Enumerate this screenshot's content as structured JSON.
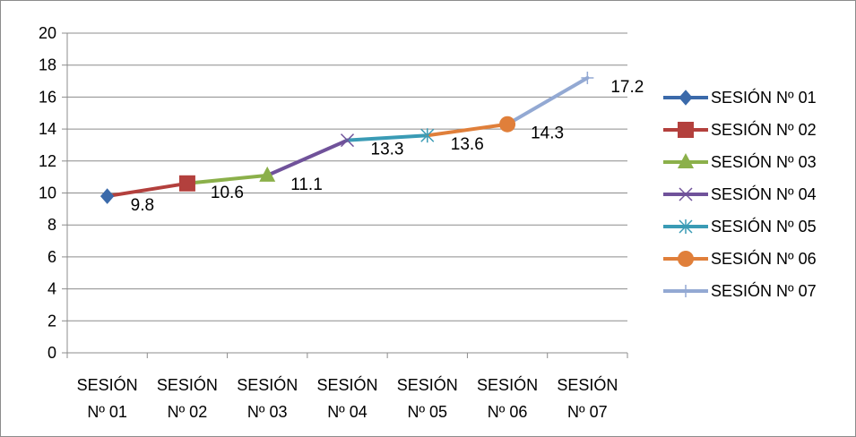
{
  "chart_data": {
    "type": "line",
    "title": "",
    "xlabel": "",
    "ylabel": "",
    "ylim": [
      0,
      20
    ],
    "yticks": [
      0,
      2,
      4,
      6,
      8,
      10,
      12,
      14,
      16,
      18,
      20
    ],
    "grid": "horizontal",
    "legend_position": "right",
    "categories": [
      [
        "SESIÓN",
        "Nº 01"
      ],
      [
        "SESIÓN",
        "Nº 02"
      ],
      [
        "SESIÓN",
        "Nº 03"
      ],
      [
        "SESIÓN",
        "Nº 04"
      ],
      [
        "SESIÓN",
        "Nº 05"
      ],
      [
        "SESIÓN",
        "Nº 06"
      ],
      [
        "SESIÓN",
        "Nº 07"
      ]
    ],
    "series": [
      {
        "name": "SESIÓN Nº 01",
        "values": [
          9.8,
          null,
          null,
          null,
          null,
          null,
          null
        ],
        "label": "9.8",
        "color": "#3b6aaa",
        "marker": "diamond-icon"
      },
      {
        "name": "SESIÓN Nº 02",
        "values": [
          9.8,
          10.6,
          null,
          null,
          null,
          null,
          null
        ],
        "label": "10.6",
        "color": "#b3403d",
        "marker": "square-icon"
      },
      {
        "name": "SESIÓN Nº 03",
        "values": [
          null,
          10.6,
          11.1,
          null,
          null,
          null,
          null
        ],
        "label": "11.1",
        "color": "#8bb04a",
        "marker": "triangle-icon"
      },
      {
        "name": "SESIÓN Nº 04",
        "values": [
          null,
          null,
          11.1,
          13.3,
          null,
          null,
          null
        ],
        "label": "13.3",
        "color": "#70529a",
        "marker": "x-icon"
      },
      {
        "name": "SESIÓN Nº 05",
        "values": [
          null,
          null,
          null,
          13.3,
          13.6,
          null,
          null
        ],
        "label": "13.6",
        "color": "#3a9bb5",
        "marker": "asterisk-icon"
      },
      {
        "name": "SESIÓN Nº 06",
        "values": [
          null,
          null,
          null,
          null,
          13.6,
          14.3,
          null
        ],
        "label": "14.3",
        "color": "#e07f3a",
        "marker": "circle-icon"
      },
      {
        "name": "SESIÓN Nº 07",
        "values": [
          null,
          null,
          null,
          null,
          null,
          14.3,
          17.2
        ],
        "label": "17.2",
        "color": "#93a9d3",
        "marker": "plus-icon"
      }
    ]
  }
}
